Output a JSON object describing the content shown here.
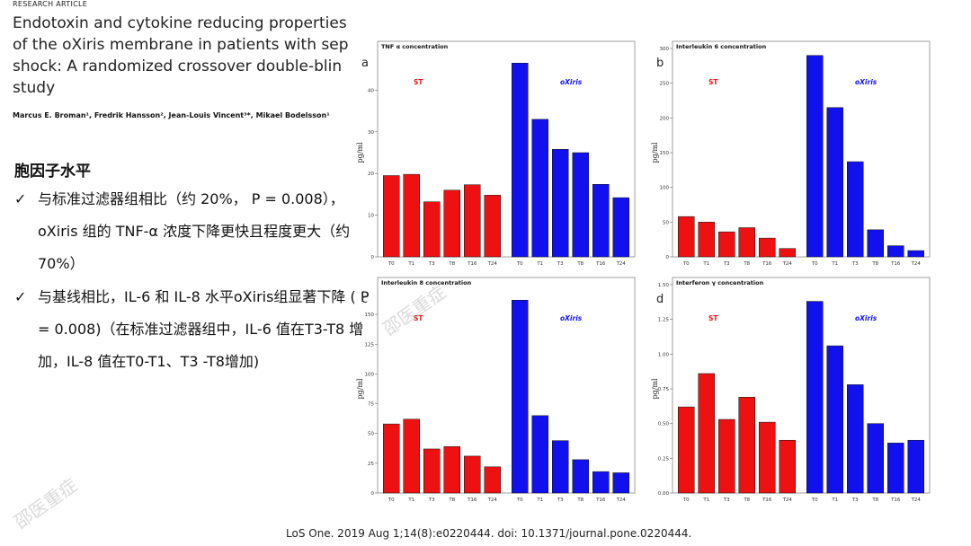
{
  "header": {
    "tag": "RESEARCH ARTICLE",
    "title": "Endotoxin and cytokine reducing properties\nof the oXiris membrane in patients with sep\nshock: A randomized crossover double-blin\nstudy",
    "authors": "Marcus E. Broman¹, Fredrik Hansson², Jean-Louis Vincent³*, Mikael Bodelsson¹"
  },
  "summary": {
    "heading": "胞因子水平",
    "bullets": [
      "与标准过滤器组相比（约 20%， P = 0.008），oXiris 组的 TNF-α 浓度下降更快且程度更大（约 70%）",
      "与基线相比，IL-6 和 IL-8 水平oXiris组显著下降 ( P = 0.008)（在标准过滤器组中，IL-6 值在T3-T8 增加，IL-8 值在T0-T1、T3 -T8增加)"
    ],
    "check_icon": "check-icon"
  },
  "citation": "LoS One. 2019 Aug 1;14(8):e0220444. doi: 10.1371/journal.pone.0220444.",
  "watermark": "邵医重症",
  "colors": {
    "st": "#ee1111",
    "oxiris": "#1111ee"
  },
  "chart_data": [
    {
      "type": "bar",
      "letter": "a",
      "title": "TNF α concentration",
      "ylabel": "pg/ml",
      "categories": [
        "T0",
        "T1",
        "T3",
        "T8",
        "T16",
        "T24"
      ],
      "ylim": [
        0,
        50
      ],
      "yticks": [
        0,
        10,
        20,
        30,
        40
      ],
      "series": [
        {
          "name": "ST",
          "values": [
            19.5,
            19.8,
            13.2,
            16.0,
            17.3,
            14.8
          ]
        },
        {
          "name": "oXiris",
          "values": [
            46.5,
            33.0,
            25.8,
            25.0,
            17.4,
            14.2
          ]
        }
      ]
    },
    {
      "type": "bar",
      "letter": "b",
      "title": "Interleukin 6 concentration",
      "ylabel": "pg/ml",
      "categories": [
        "T0",
        "T1",
        "T3",
        "T8",
        "T16",
        "T24"
      ],
      "ylim": [
        0,
        300
      ],
      "yticks": [
        0,
        50,
        100,
        150,
        200,
        250,
        300
      ],
      "series": [
        {
          "name": "ST",
          "values": [
            58,
            50,
            36,
            42,
            27,
            12
          ]
        },
        {
          "name": "oXiris",
          "values": [
            290,
            215,
            137,
            39,
            16,
            9
          ]
        }
      ]
    },
    {
      "type": "bar",
      "letter": "c",
      "title": "Interleukin 8 concentration",
      "ylabel": "pg/ml",
      "categories": [
        "T0",
        "T1",
        "T3",
        "T8",
        "T16",
        "T24"
      ],
      "ylim": [
        0,
        175
      ],
      "yticks": [
        0,
        25,
        50,
        75,
        100,
        125,
        150
      ],
      "series": [
        {
          "name": "ST",
          "values": [
            58,
            62,
            37,
            39,
            31,
            22
          ]
        },
        {
          "name": "oXiris",
          "values": [
            162,
            65,
            44,
            28,
            18,
            17
          ]
        }
      ]
    },
    {
      "type": "bar",
      "letter": "d",
      "title": "Interferon γ concentration",
      "ylabel": "pg/ml",
      "categories": [
        "T0",
        "T1",
        "T3",
        "T8",
        "T16",
        "T24"
      ],
      "ylim": [
        0,
        1.5
      ],
      "yticks": [
        0.0,
        0.25,
        0.5,
        0.75,
        1.0,
        1.25,
        1.5
      ],
      "series": [
        {
          "name": "ST",
          "values": [
            0.62,
            0.86,
            0.53,
            0.69,
            0.51,
            0.38
          ]
        },
        {
          "name": "oXiris",
          "values": [
            1.38,
            1.06,
            0.78,
            0.5,
            0.36,
            0.38
          ]
        }
      ]
    }
  ]
}
